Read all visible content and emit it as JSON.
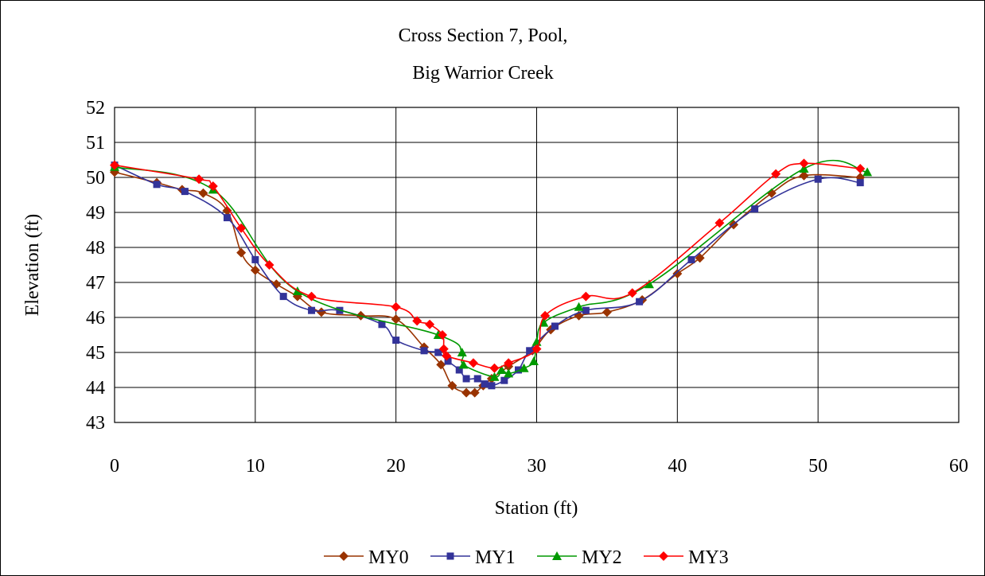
{
  "chart_data": {
    "type": "line",
    "title": [
      "Cross Section 7, Pool,",
      "Big Warrior Creek"
    ],
    "xlabel": "Station (ft)",
    "ylabel": "Elevation (ft)",
    "xlim": [
      0,
      60
    ],
    "ylim": [
      43,
      52
    ],
    "xticks": [
      0,
      10,
      20,
      30,
      40,
      50,
      60
    ],
    "yticks": [
      43,
      44,
      45,
      46,
      47,
      48,
      49,
      50,
      51,
      52
    ],
    "grid": true,
    "legend_position": "bottom",
    "series": [
      {
        "name": "MY0",
        "color": "#993300",
        "marker": "diamond",
        "points": [
          [
            0,
            50.15
          ],
          [
            3,
            49.85
          ],
          [
            4.8,
            49.65
          ],
          [
            6.3,
            49.55
          ],
          [
            8,
            49.05
          ],
          [
            9,
            47.85
          ],
          [
            10,
            47.35
          ],
          [
            11.5,
            46.95
          ],
          [
            13,
            46.6
          ],
          [
            14.7,
            46.15
          ],
          [
            17.5,
            46.05
          ],
          [
            20,
            45.95
          ],
          [
            22,
            45.15
          ],
          [
            23.2,
            44.65
          ],
          [
            24,
            44.05
          ],
          [
            25,
            43.85
          ],
          [
            25.6,
            43.85
          ],
          [
            26.2,
            44.05
          ],
          [
            26.8,
            44.25
          ],
          [
            28,
            44.6
          ],
          [
            29.7,
            45.05
          ],
          [
            31,
            45.65
          ],
          [
            33,
            46.05
          ],
          [
            35,
            46.15
          ],
          [
            37.5,
            46.5
          ],
          [
            40,
            47.25
          ],
          [
            41.6,
            47.7
          ],
          [
            44,
            48.65
          ],
          [
            46.7,
            49.55
          ],
          [
            49,
            50.05
          ],
          [
            53,
            50.0
          ]
        ]
      },
      {
        "name": "MY1",
        "color": "#333399",
        "marker": "square",
        "points": [
          [
            0,
            50.35
          ],
          [
            3,
            49.8
          ],
          [
            5,
            49.6
          ],
          [
            8,
            48.85
          ],
          [
            10,
            47.65
          ],
          [
            12,
            46.6
          ],
          [
            14,
            46.2
          ],
          [
            16,
            46.2
          ],
          [
            19,
            45.8
          ],
          [
            20,
            45.35
          ],
          [
            22,
            45.05
          ],
          [
            23,
            45.0
          ],
          [
            23.7,
            44.75
          ],
          [
            24.5,
            44.5
          ],
          [
            25,
            44.25
          ],
          [
            25.8,
            44.25
          ],
          [
            26.3,
            44.1
          ],
          [
            26.8,
            44.05
          ],
          [
            27.7,
            44.2
          ],
          [
            28.7,
            44.5
          ],
          [
            29.5,
            45.05
          ],
          [
            31.3,
            45.75
          ],
          [
            33.5,
            46.2
          ],
          [
            37.3,
            46.45
          ],
          [
            41,
            47.65
          ],
          [
            45.5,
            49.1
          ],
          [
            50,
            49.95
          ],
          [
            53,
            49.85
          ]
        ]
      },
      {
        "name": "MY2",
        "color": "#009900",
        "marker": "triangle",
        "points": [
          [
            0,
            50.3
          ],
          [
            7,
            49.65
          ],
          [
            13,
            46.75
          ],
          [
            23,
            45.5
          ],
          [
            24.7,
            45.0
          ],
          [
            24.8,
            44.65
          ],
          [
            27,
            44.3
          ],
          [
            27.5,
            44.5
          ],
          [
            28,
            44.4
          ],
          [
            29.1,
            44.55
          ],
          [
            29.8,
            44.75
          ],
          [
            30,
            45.3
          ],
          [
            30.5,
            45.85
          ],
          [
            33,
            46.3
          ],
          [
            38,
            46.95
          ],
          [
            49,
            50.25
          ],
          [
            53.5,
            50.15
          ]
        ]
      },
      {
        "name": "MY3",
        "color": "#FF0000",
        "marker": "diamond",
        "points": [
          [
            0,
            50.35
          ],
          [
            6,
            49.95
          ],
          [
            7,
            49.75
          ],
          [
            9,
            48.55
          ],
          [
            11,
            47.5
          ],
          [
            14,
            46.6
          ],
          [
            20,
            46.3
          ],
          [
            21.5,
            45.9
          ],
          [
            22.4,
            45.8
          ],
          [
            23.3,
            45.5
          ],
          [
            23.4,
            45.1
          ],
          [
            23.6,
            44.9
          ],
          [
            25.5,
            44.7
          ],
          [
            27,
            44.55
          ],
          [
            28,
            44.7
          ],
          [
            30,
            45.1
          ],
          [
            30.6,
            46.05
          ],
          [
            33.5,
            46.6
          ],
          [
            36.8,
            46.7
          ],
          [
            43,
            48.7
          ],
          [
            47,
            50.1
          ],
          [
            49,
            50.4
          ],
          [
            53,
            50.25
          ]
        ]
      }
    ]
  }
}
